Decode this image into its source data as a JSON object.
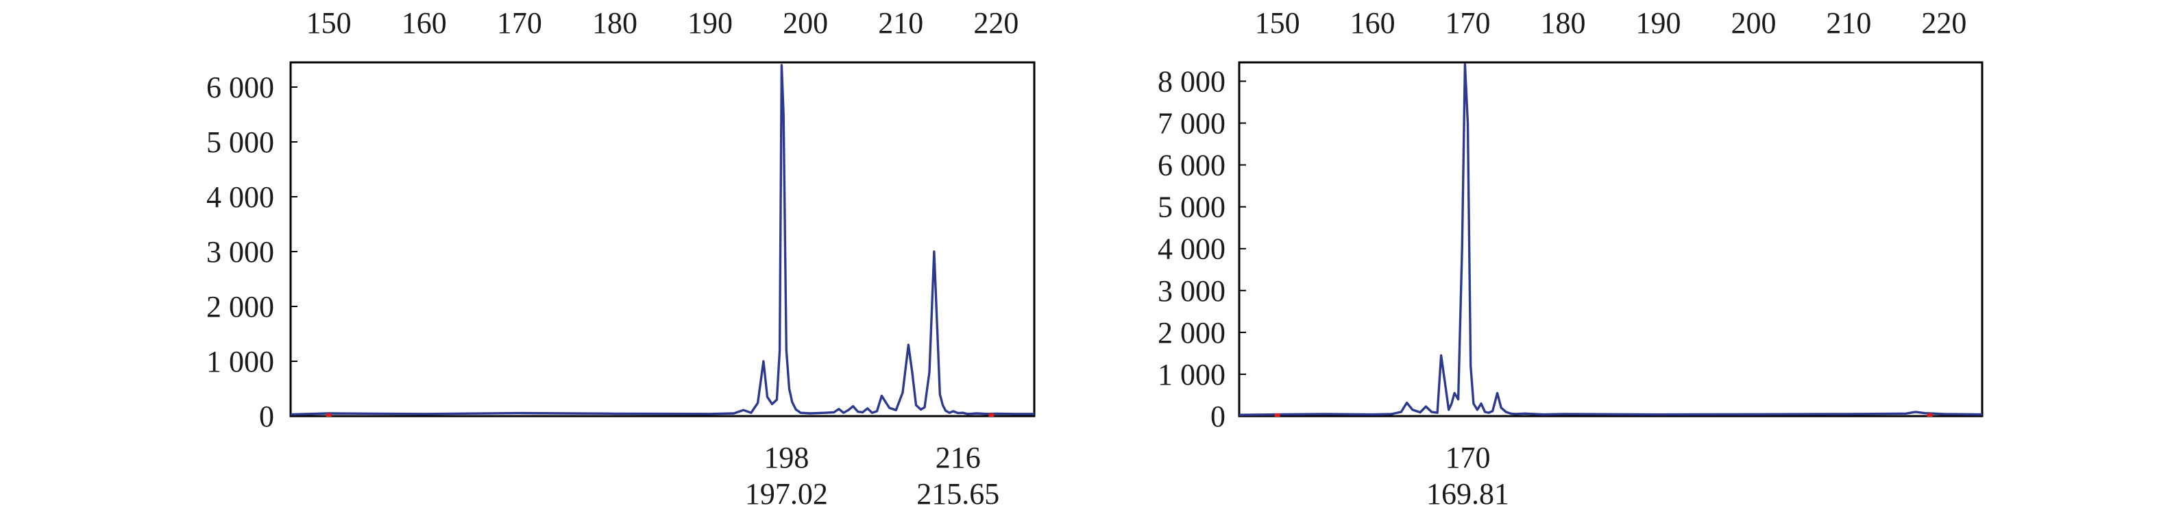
{
  "colors": {
    "trace": "#2b3a8f",
    "frame": "#000000",
    "marker": "#e02020",
    "background": "#ffffff"
  },
  "chart_data": [
    {
      "type": "line",
      "title": "",
      "xlabel": "",
      "ylabel": "",
      "xlim": [
        146,
        224
      ],
      "ylim": [
        0,
        6450
      ],
      "grid": false,
      "x_ticks_top": [
        150,
        160,
        170,
        180,
        190,
        200,
        210,
        220
      ],
      "x_tick_labels_top": [
        "150",
        "160",
        "170",
        "180",
        "190",
        "200",
        "210",
        "220"
      ],
      "y_ticks": [
        0,
        1000,
        2000,
        3000,
        4000,
        5000,
        6000
      ],
      "y_tick_labels": [
        "0",
        "1 000",
        "2 000",
        "3 000",
        "4 000",
        "5 000",
        "6 000"
      ],
      "peak_labels": [
        {
          "x": 198,
          "nominal": "198",
          "measured": "197.02"
        },
        {
          "x": 216,
          "nominal": "216",
          "measured": "215.65"
        }
      ],
      "markers_x": [
        150,
        219.5
      ],
      "series": [
        {
          "x": [
            146,
            150,
            160,
            170,
            180,
            190,
            192.5,
            193.5,
            194.3,
            195,
            195.6,
            196,
            196.5,
            197,
            197.3,
            197.5,
            197.7,
            198,
            198.3,
            198.6,
            199,
            199.5,
            200.5,
            202,
            203,
            203.5,
            204,
            204.5,
            205,
            205.5,
            206,
            206.5,
            207,
            207.5,
            208,
            208.8,
            209.5,
            210.2,
            210.8,
            211.2,
            211.6,
            212.1,
            212.5,
            213,
            213.5,
            213.8,
            214.1,
            214.4,
            214.7,
            215.1,
            215.5,
            216,
            216.5,
            217,
            217.5,
            218,
            219,
            220,
            222,
            224
          ],
          "y": [
            30,
            50,
            40,
            55,
            45,
            40,
            50,
            110,
            60,
            240,
            1000,
            350,
            220,
            300,
            1200,
            6400,
            5500,
            1200,
            500,
            260,
            120,
            60,
            50,
            60,
            70,
            130,
            60,
            110,
            180,
            80,
            70,
            140,
            60,
            90,
            370,
            150,
            110,
            430,
            1300,
            800,
            200,
            120,
            160,
            800,
            3000,
            1700,
            400,
            200,
            100,
            60,
            90,
            55,
            60,
            40,
            45,
            50,
            40,
            45,
            40,
            40
          ]
        }
      ]
    },
    {
      "type": "line",
      "title": "",
      "xlabel": "",
      "ylabel": "",
      "xlim": [
        146,
        224
      ],
      "ylim": [
        0,
        8450
      ],
      "grid": false,
      "x_ticks_top": [
        150,
        160,
        170,
        180,
        190,
        200,
        210,
        220
      ],
      "x_tick_labels_top": [
        "150",
        "160",
        "170",
        "180",
        "190",
        "200",
        "210",
        "220"
      ],
      "y_ticks": [
        0,
        1000,
        2000,
        3000,
        4000,
        5000,
        6000,
        7000,
        8000
      ],
      "y_tick_labels": [
        "0",
        "1 000",
        "2 000",
        "3 000",
        "4 000",
        "5 000",
        "6 000",
        "7 000",
        "8 000"
      ],
      "peak_labels": [
        {
          "x": 170,
          "nominal": "170",
          "measured": "169.81"
        }
      ],
      "markers_x": [
        150,
        218.5
      ],
      "series": [
        {
          "x": [
            146,
            150,
            155,
            160,
            162,
            163,
            163.6,
            164.2,
            165,
            165.6,
            166.2,
            166.8,
            167.2,
            167.6,
            168,
            168.3,
            168.6,
            169,
            169.4,
            169.7,
            170,
            170.3,
            170.6,
            171,
            171.4,
            171.8,
            172.2,
            172.6,
            173.1,
            173.5,
            174,
            174.5,
            175,
            176,
            178,
            180,
            190,
            200,
            210,
            216,
            217,
            218,
            220,
            224
          ],
          "y": [
            30,
            40,
            50,
            40,
            50,
            100,
            320,
            150,
            90,
            230,
            100,
            80,
            1450,
            800,
            150,
            300,
            550,
            400,
            4000,
            8400,
            7000,
            1200,
            300,
            150,
            300,
            100,
            80,
            120,
            550,
            200,
            100,
            60,
            50,
            60,
            40,
            50,
            40,
            45,
            50,
            60,
            100,
            70,
            50,
            40
          ]
        }
      ]
    }
  ]
}
